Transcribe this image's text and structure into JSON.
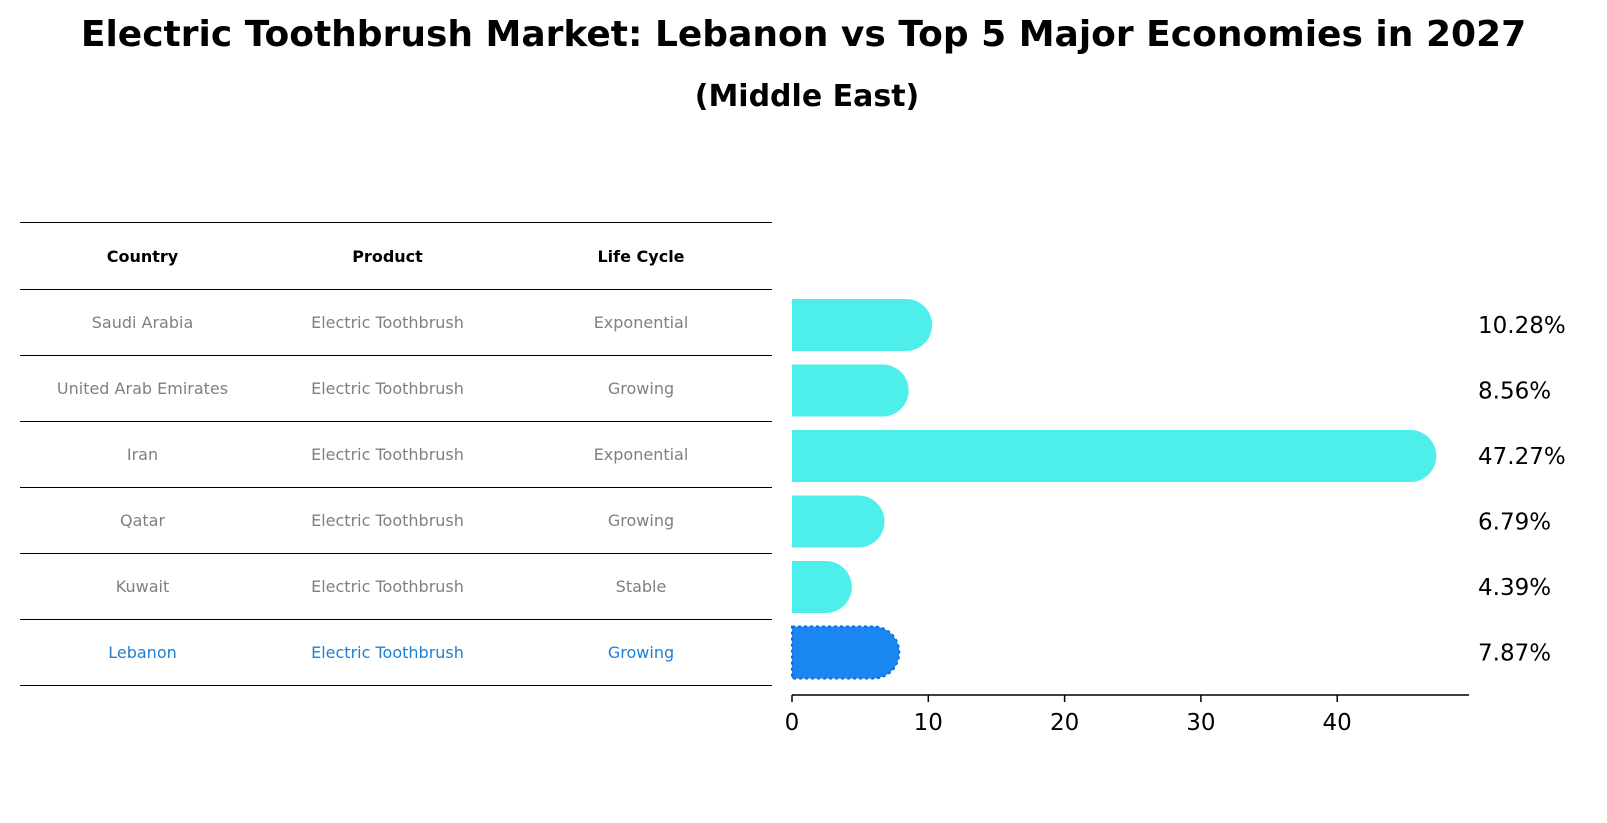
{
  "title": "Electric Toothbrush Market: Lebanon vs Top 5 Major Economies in 2027",
  "subtitle": "(Middle East)",
  "table": {
    "headers": [
      "Country",
      "Product",
      "Life Cycle"
    ],
    "rows": [
      [
        "Saudi Arabia",
        "Electric Toothbrush",
        "Exponential"
      ],
      [
        "United Arab Emirates",
        "Electric Toothbrush",
        "Growing"
      ],
      [
        "Iran",
        "Electric Toothbrush",
        "Exponential"
      ],
      [
        "Qatar",
        "Electric Toothbrush",
        "Growing"
      ],
      [
        "Kuwait",
        "Electric Toothbrush",
        "Stable"
      ],
      [
        "Lebanon",
        "Electric Toothbrush",
        "Growing"
      ]
    ]
  },
  "chart_data": {
    "type": "bar",
    "orientation": "horizontal",
    "categories": [
      "Saudi Arabia",
      "United Arab Emirates",
      "Iran",
      "Qatar",
      "Kuwait",
      "Lebanon"
    ],
    "values": [
      10.28,
      8.56,
      47.27,
      6.79,
      4.39,
      7.87
    ],
    "value_labels": [
      "10.28%",
      "8.56%",
      "47.27%",
      "6.79%",
      "4.39%",
      "7.87%"
    ],
    "xlim": [
      0,
      50
    ],
    "xticks": [
      0,
      10,
      20,
      30,
      40
    ],
    "grid": false,
    "colors": {
      "default": "#4eeeea",
      "highlight": "#1a86f2"
    },
    "highlight_category": "Lebanon"
  }
}
